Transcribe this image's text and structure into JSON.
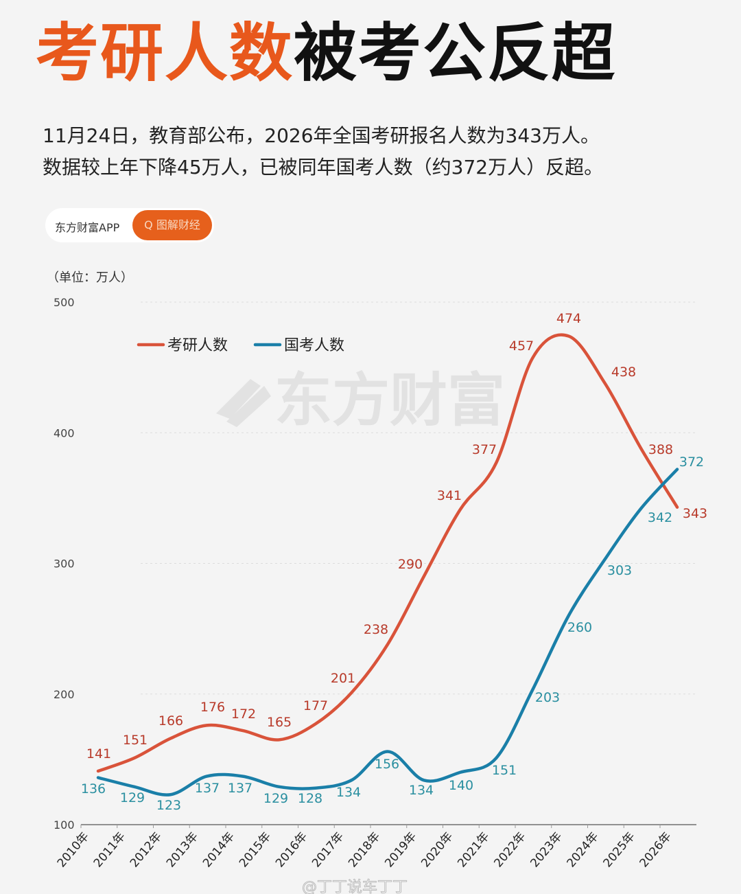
{
  "header": {
    "title_highlight": "考研人数",
    "title_rest": "被考公反超",
    "line1": "11月24日，教育部公布，2026年全国考研报名人数为343万人。",
    "line2": "数据较上年下降45万人，已被同年国考人数（约372万人）反超。"
  },
  "source_badge": {
    "brand": "东方财富APP",
    "button": "Q 图解财经"
  },
  "watermark": "东方财富",
  "weibo_watermark": "@丁丁说车丁丁",
  "chart_data": {
    "type": "line",
    "title": "",
    "unit_label": "（单位：万人）",
    "ylim": [
      100,
      500
    ],
    "yticks": [
      "100",
      "200",
      "300",
      "400",
      "500"
    ],
    "grid": true,
    "legend_position": "top-left",
    "categories": [
      "2010年",
      "2011年",
      "2012年",
      "2013年",
      "2014年",
      "2015年",
      "2016年",
      "2017年",
      "2018年",
      "2019年",
      "2020年",
      "2021年",
      "2022年",
      "2023年",
      "2024年",
      "2025年",
      "2026年"
    ],
    "series": [
      {
        "name": "考研人数",
        "color": "#d9533a",
        "label_color": "#b83a2a",
        "values": [
          141,
          151,
          166,
          176,
          172,
          165,
          177,
          201,
          238,
          290,
          341,
          377,
          457,
          474,
          438,
          388,
          343
        ]
      },
      {
        "name": "国考人数",
        "color": "#1a7fa8",
        "label_color": "#2a8fa0",
        "values": [
          136,
          129,
          123,
          137,
          137,
          129,
          128,
          134,
          156,
          134,
          140,
          151,
          203,
          260,
          303,
          342,
          372
        ]
      }
    ]
  }
}
